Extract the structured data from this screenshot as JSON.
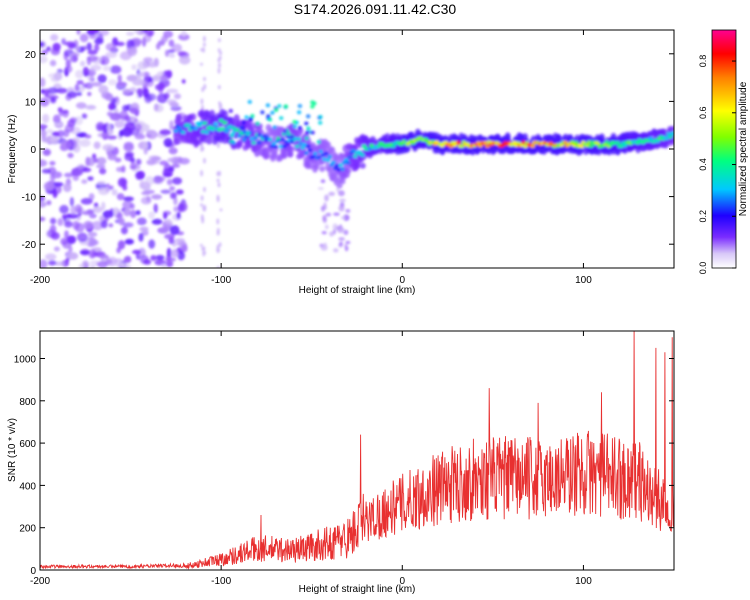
{
  "title": "S174.2026.091.11.42.C30",
  "chart_data": [
    {
      "type": "heatmap",
      "name": "spectrogram",
      "xlabel": "Height of straight line (km)",
      "ylabel": "Frequency (Hz)",
      "xlim": [
        -200,
        150
      ],
      "ylim": [
        -25,
        25
      ],
      "xticks": [
        -200,
        -100,
        0,
        100
      ],
      "yticks": [
        -20,
        -10,
        0,
        10,
        20
      ],
      "xtick_labels": [
        "-200",
        "-100",
        "0",
        "100"
      ],
      "ytick_labels": [
        "-20",
        "-10",
        "0",
        "10",
        "20"
      ],
      "colorbar": {
        "label": "Normalized spectral amplitude",
        "range": [
          0,
          0.92
        ],
        "ticks": [
          0.0,
          0.2,
          0.4,
          0.6,
          0.8
        ],
        "tick_labels": [
          "0.0",
          "0.2",
          "0.4",
          "0.6",
          "0.8"
        ],
        "colors": [
          "#ffffff",
          "#c8a8f0",
          "#7a2cff",
          "#1e00ff",
          "#00c8ff",
          "#00ff80",
          "#a0ff00",
          "#ffff00",
          "#ff8000",
          "#ff0000",
          "#ff0090"
        ]
      },
      "ridge": {
        "x": [
          -125,
          -110,
          -100,
          -90,
          -80,
          -70,
          -60,
          -50,
          -40,
          -35,
          -30,
          -25,
          -20,
          -10,
          0,
          10,
          20,
          40,
          60,
          80,
          100,
          120,
          140,
          150
        ],
        "freq": [
          4,
          4.5,
          5,
          3,
          2,
          1,
          2,
          -1,
          -2,
          -5,
          -2,
          -1,
          0,
          1,
          1,
          2,
          1,
          1,
          1,
          1,
          1,
          1,
          2,
          3
        ],
        "amplitude": [
          0.35,
          0.4,
          0.45,
          0.38,
          0.35,
          0.3,
          0.35,
          0.32,
          0.3,
          0.3,
          0.35,
          0.38,
          0.42,
          0.45,
          0.5,
          0.6,
          0.75,
          0.85,
          0.85,
          0.8,
          0.6,
          0.5,
          0.45,
          0.4
        ]
      },
      "noise_region": [
        -200,
        -120
      ]
    },
    {
      "type": "line",
      "name": "snr",
      "xlabel": "Height of straight line (km)",
      "ylabel": "SNR (10 * v/v)",
      "xlim": [
        -200,
        150
      ],
      "ylim": [
        0,
        1130
      ],
      "xticks": [
        -200,
        -100,
        0,
        100
      ],
      "yticks": [
        0,
        200,
        400,
        600,
        800,
        1000
      ],
      "xtick_labels": [
        "-200",
        "-100",
        "0",
        "100"
      ],
      "ytick_labels": [
        "0",
        "200",
        "400",
        "600",
        "800",
        "1000"
      ],
      "color": "#e83030",
      "envelope": {
        "x": [
          -200,
          -150,
          -120,
          -100,
          -80,
          -60,
          -40,
          -30,
          -20,
          -10,
          0,
          20,
          40,
          60,
          80,
          100,
          120,
          130,
          140,
          150
        ],
        "y": [
          15,
          15,
          20,
          60,
          120,
          110,
          150,
          180,
          280,
          330,
          380,
          470,
          520,
          530,
          520,
          560,
          530,
          520,
          400,
          400
        ]
      },
      "peaks": [
        {
          "x": -78,
          "y": 260
        },
        {
          "x": -23,
          "y": 640
        },
        {
          "x": 48,
          "y": 860
        },
        {
          "x": 75,
          "y": 790
        },
        {
          "x": 110,
          "y": 840
        },
        {
          "x": 128,
          "y": 1130
        },
        {
          "x": 140,
          "y": 1050
        },
        {
          "x": 145,
          "y": 1030
        },
        {
          "x": 149,
          "y": 1100
        }
      ]
    }
  ]
}
